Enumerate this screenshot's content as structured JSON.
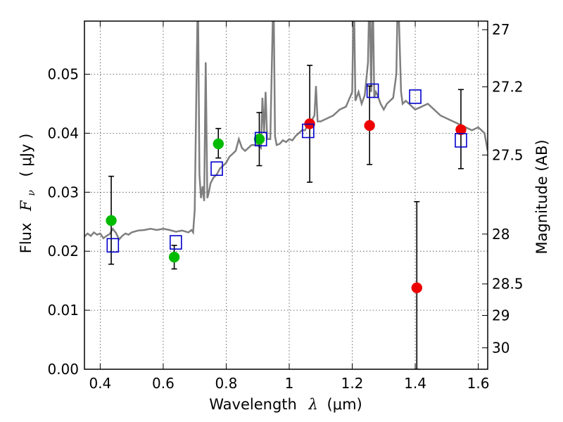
{
  "chart_data": {
    "type": "scatter",
    "xlabel_text": "Wavelength",
    "xlabel_symbol": "λ",
    "xlabel_unit": "(μm)",
    "ylabel_text": "Flux",
    "ylabel_symbol": "F",
    "ylabel_subscript": "ν",
    "ylabel_unit": "( μJy )",
    "y2label": "Magnitude (AB)",
    "xlim": [
      0.35,
      1.63
    ],
    "ylim": [
      0.0,
      0.059
    ],
    "grid": true,
    "legend": "none",
    "x_ticks": [
      {
        "value": 0.4,
        "label": "0.4"
      },
      {
        "value": 0.6,
        "label": "0.6"
      },
      {
        "value": 0.8,
        "label": "0.8"
      },
      {
        "value": 1.0,
        "label": "1"
      },
      {
        "value": 1.2,
        "label": "1.2"
      },
      {
        "value": 1.4,
        "label": "1.4"
      },
      {
        "value": 1.6,
        "label": "1.6"
      }
    ],
    "y_ticks": [
      {
        "value": 0.0,
        "label": "0.00"
      },
      {
        "value": 0.01,
        "label": "0.01"
      },
      {
        "value": 0.02,
        "label": "0.02"
      },
      {
        "value": 0.03,
        "label": "0.03"
      },
      {
        "value": 0.04,
        "label": "0.04"
      },
      {
        "value": 0.05,
        "label": "0.05"
      }
    ],
    "y2_ticks": [
      {
        "mag": 27.0,
        "label": "27"
      },
      {
        "mag": 27.2,
        "label": "27.2"
      },
      {
        "mag": 27.5,
        "label": "27.5"
      },
      {
        "mag": 28.0,
        "label": "28"
      },
      {
        "mag": 28.5,
        "label": "28.5"
      },
      {
        "mag": 29.0,
        "label": "29"
      },
      {
        "mag": 30.0,
        "label": "30"
      }
    ],
    "colors": {
      "spectrum": "#7f7f7f",
      "green": "#00bb00",
      "red": "#ee0000",
      "model": "#0000cc",
      "errorbar": "#000000",
      "grid": "#444444"
    },
    "model_spectrum": {
      "x": [
        0.35,
        0.36,
        0.37,
        0.38,
        0.39,
        0.4,
        0.41,
        0.42,
        0.43,
        0.44,
        0.45,
        0.46,
        0.47,
        0.48,
        0.49,
        0.5,
        0.52,
        0.54,
        0.56,
        0.58,
        0.6,
        0.62,
        0.64,
        0.66,
        0.68,
        0.69,
        0.695,
        0.7,
        0.705,
        0.71,
        0.715,
        0.72,
        0.725,
        0.73,
        0.735,
        0.74,
        0.745,
        0.75,
        0.76,
        0.77,
        0.78,
        0.79,
        0.8,
        0.81,
        0.82,
        0.83,
        0.84,
        0.85,
        0.86,
        0.87,
        0.88,
        0.89,
        0.9,
        0.91,
        0.915,
        0.92,
        0.925,
        0.93,
        0.94,
        0.95,
        0.955,
        0.96,
        0.97,
        0.98,
        0.99,
        1.0,
        1.01,
        1.02,
        1.03,
        1.04,
        1.05,
        1.06,
        1.07,
        1.08,
        1.085,
        1.09,
        1.1,
        1.12,
        1.14,
        1.16,
        1.18,
        1.2,
        1.205,
        1.21,
        1.22,
        1.23,
        1.24,
        1.25,
        1.255,
        1.26,
        1.265,
        1.27,
        1.275,
        1.28,
        1.29,
        1.3,
        1.31,
        1.32,
        1.33,
        1.34,
        1.345,
        1.35,
        1.355,
        1.36,
        1.37,
        1.38,
        1.39,
        1.4,
        1.42,
        1.44,
        1.46,
        1.48,
        1.5,
        1.52,
        1.54,
        1.56,
        1.58,
        1.6,
        1.62,
        1.63
      ],
      "y": [
        0.0225,
        0.023,
        0.0226,
        0.0232,
        0.0228,
        0.023,
        0.0222,
        0.0226,
        0.0229,
        0.0238,
        0.0231,
        0.022,
        0.0226,
        0.023,
        0.0228,
        0.0232,
        0.0235,
        0.0236,
        0.0238,
        0.0236,
        0.0238,
        0.0236,
        0.0233,
        0.0235,
        0.0232,
        0.0236,
        0.0232,
        0.027,
        0.046,
        0.065,
        0.033,
        0.029,
        0.031,
        0.0285,
        0.052,
        0.029,
        0.03,
        0.0315,
        0.0325,
        0.033,
        0.034,
        0.0345,
        0.035,
        0.036,
        0.0365,
        0.037,
        0.039,
        0.0375,
        0.037,
        0.0375,
        0.038,
        0.038,
        0.038,
        0.0375,
        0.046,
        0.04,
        0.047,
        0.039,
        0.039,
        0.065,
        0.0395,
        0.038,
        0.0382,
        0.0388,
        0.0385,
        0.039,
        0.0388,
        0.0395,
        0.04,
        0.0405,
        0.0405,
        0.0415,
        0.042,
        0.043,
        0.048,
        0.042,
        0.042,
        0.0425,
        0.043,
        0.044,
        0.0445,
        0.047,
        0.065,
        0.0455,
        0.047,
        0.045,
        0.0465,
        0.052,
        0.065,
        0.047,
        0.065,
        0.046,
        0.047,
        0.0465,
        0.045,
        0.044,
        0.045,
        0.0455,
        0.046,
        0.05,
        0.065,
        0.056,
        0.047,
        0.045,
        0.0455,
        0.045,
        0.0445,
        0.044,
        0.0445,
        0.045,
        0.044,
        0.043,
        0.0425,
        0.042,
        0.0415,
        0.041,
        0.0405,
        0.041,
        0.04,
        0.037
      ]
    },
    "series": [
      {
        "color": "green",
        "marker": "circle",
        "points": [
          {
            "x": 0.435,
            "y": 0.0252,
            "err_lo": 0.0178,
            "err_hi": 0.0327
          },
          {
            "x": 0.635,
            "y": 0.019,
            "err_lo": 0.017,
            "err_hi": 0.021
          },
          {
            "x": 0.775,
            "y": 0.0382,
            "err_lo": 0.0358,
            "err_hi": 0.0408
          },
          {
            "x": 0.905,
            "y": 0.039,
            "err_lo": 0.0345,
            "err_hi": 0.0435
          }
        ]
      },
      {
        "color": "red",
        "marker": "circle",
        "points": [
          {
            "x": 1.065,
            "y": 0.0416,
            "err_lo": 0.0317,
            "err_hi": 0.0515
          },
          {
            "x": 1.255,
            "y": 0.0413,
            "err_lo": 0.0347,
            "err_hi": 0.048
          },
          {
            "x": 1.405,
            "y": 0.0138,
            "err_lo": 0.0,
            "err_hi": 0.0284
          },
          {
            "x": 1.545,
            "y": 0.0406,
            "err_lo": 0.034,
            "err_hi": 0.0474
          }
        ]
      },
      {
        "color": "model",
        "marker": "open-square",
        "points": [
          {
            "x": 0.44,
            "y": 0.021
          },
          {
            "x": 0.64,
            "y": 0.0215
          },
          {
            "x": 0.77,
            "y": 0.034
          },
          {
            "x": 0.91,
            "y": 0.039
          },
          {
            "x": 1.06,
            "y": 0.0404
          },
          {
            "x": 1.265,
            "y": 0.0472
          },
          {
            "x": 1.4,
            "y": 0.0462
          },
          {
            "x": 1.545,
            "y": 0.0388
          }
        ]
      }
    ]
  }
}
